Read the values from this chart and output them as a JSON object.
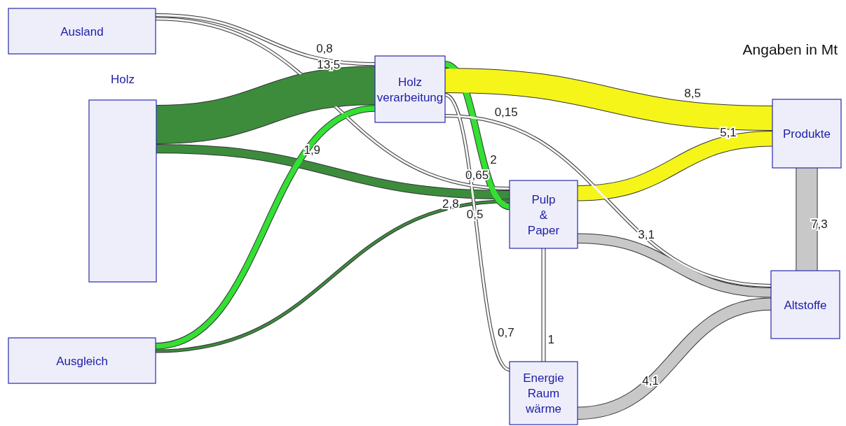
{
  "chart_data": {
    "type": "other",
    "annotations": [
      "Angaben in Mt"
    ],
    "categories": [
      "Ausland",
      "Holz",
      "Ausgleich",
      "Holz\nverarbeitung",
      "Pulp\n&\nPaper",
      "Produkte",
      "Altstoffe",
      "Energie\nRaum\nwärme"
    ],
    "series": [
      {
        "values": [
          null,
          null,
          null,
          0.8,
          0.65,
          null,
          null,
          null
        ],
        "value_labels": [
          null,
          null,
          null,
          "0,8",
          "0,65",
          null,
          null,
          null
        ],
        "colors": [
          null,
          null,
          null,
          "#f4f4f4",
          "#f4f4f4",
          null,
          null,
          null
        ]
      },
      {
        "values": [
          null,
          null,
          null,
          13.5,
          2.8,
          null,
          null,
          null
        ],
        "value_labels": [
          null,
          null,
          null,
          "13,5",
          "2,8",
          null,
          null,
          null
        ],
        "colors": [
          null,
          null,
          null,
          "#3c8c3c",
          "#3c8c3c",
          null,
          null,
          null
        ]
      },
      {
        "values": [
          null,
          null,
          null,
          1.9,
          0.5,
          null,
          null,
          null
        ],
        "value_labels": [
          null,
          null,
          null,
          "1,9",
          "0,5",
          null,
          null,
          null
        ],
        "colors": [
          null,
          null,
          null,
          "#33e033",
          "#3c8c3c",
          null,
          null,
          null
        ]
      },
      {
        "values": [
          null,
          null,
          null,
          null,
          2,
          8.5,
          null,
          0.7
        ],
        "value_labels": [
          null,
          null,
          null,
          null,
          "2",
          "8,5",
          null,
          "0,7"
        ],
        "colors": [
          null,
          null,
          null,
          null,
          "#33e033",
          "#f5f51a",
          null,
          "#f4f4f4"
        ]
      },
      {
        "values": [
          null,
          null,
          null,
          null,
          null,
          5.1,
          null,
          1
        ],
        "value_labels": [
          null,
          null,
          null,
          null,
          null,
          "5,1",
          null,
          "1"
        ],
        "colors": [
          null,
          null,
          null,
          null,
          null,
          "#f5f51a",
          null,
          "#f4f4f4"
        ]
      },
      {
        "values": [
          null,
          null,
          null,
          null,
          null,
          null,
          7.3,
          null
        ],
        "value_labels": [
          null,
          null,
          null,
          null,
          null,
          null,
          "7,3",
          null
        ],
        "colors": [
          null,
          null,
          null,
          null,
          null,
          null,
          "#c8c8c8",
          null
        ]
      },
      {
        "values": [
          null,
          null,
          null,
          0.15,
          3.1,
          null,
          null,
          4.1
        ],
        "value_labels": [
          null,
          null,
          null,
          "0,15",
          "3,1",
          null,
          null,
          "4,1"
        ],
        "colors": [
          null,
          null,
          null,
          "#f4f4f4",
          "#c8c8c8",
          null,
          null,
          "#c8c8c8"
        ]
      }
    ]
  }
}
